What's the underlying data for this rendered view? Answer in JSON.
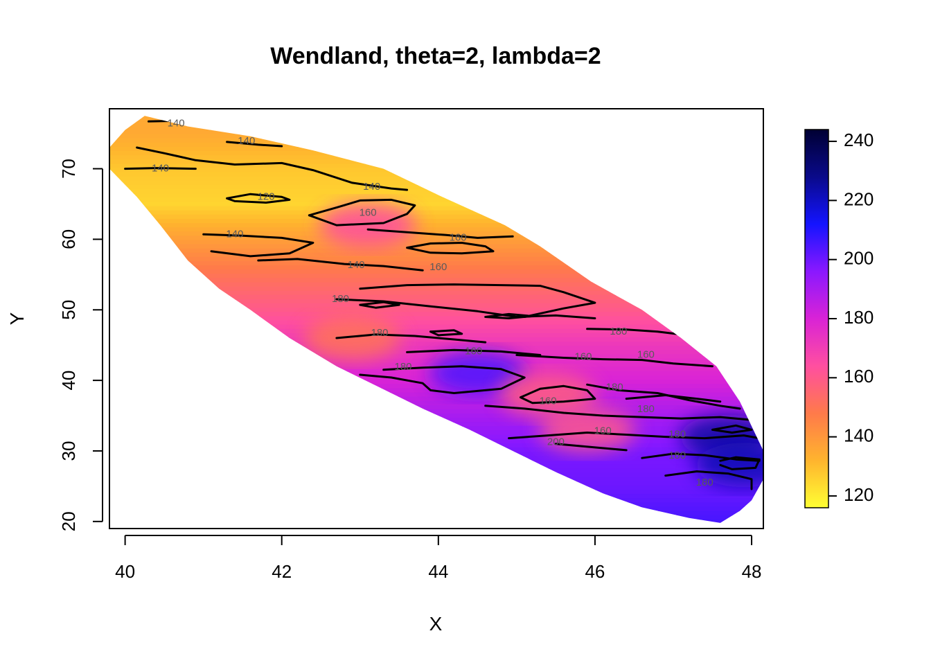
{
  "chart_data": {
    "type": "heatmap",
    "title": "Wendland, theta=2, lambda=2",
    "xlabel": "X",
    "ylabel": "Y",
    "xlim": [
      39.8,
      48.15
    ],
    "ylim": [
      19,
      78.5
    ],
    "x_ticks": [
      40,
      42,
      44,
      46,
      48
    ],
    "y_ticks": [
      20,
      30,
      40,
      50,
      60,
      70
    ],
    "x_tick_labels": [
      "40",
      "42",
      "44",
      "46",
      "48"
    ],
    "y_tick_labels": [
      "20",
      "30",
      "40",
      "50",
      "60",
      "70"
    ],
    "colorbar": {
      "range": [
        116,
        244
      ],
      "ticks": [
        120,
        140,
        160,
        180,
        200,
        220,
        240
      ],
      "tick_labels": [
        "120",
        "140",
        "160",
        "180",
        "200",
        "220",
        "240"
      ],
      "colors": [
        "#FFFF33",
        "#FFB42E",
        "#FF7A4A",
        "#FF4FA0",
        "#D923D6",
        "#8A18FF",
        "#1414FF",
        "#0A0A8A",
        "#000033"
      ]
    },
    "region_outline": [
      [
        40.25,
        77.5
      ],
      [
        40.8,
        76
      ],
      [
        41.6,
        74.6
      ],
      [
        42.4,
        72.6
      ],
      [
        43.3,
        70
      ],
      [
        44.05,
        66
      ],
      [
        44.85,
        62
      ],
      [
        45.3,
        59
      ],
      [
        45.95,
        54
      ],
      [
        46.6,
        50
      ],
      [
        47.1,
        46
      ],
      [
        47.55,
        42
      ],
      [
        47.85,
        37
      ],
      [
        48.15,
        30
      ],
      [
        48.15,
        26
      ],
      [
        48.0,
        23
      ],
      [
        47.85,
        21.5
      ],
      [
        47.6,
        19.8
      ],
      [
        47.2,
        20.5
      ],
      [
        46.6,
        22
      ],
      [
        46.1,
        24
      ],
      [
        45.5,
        27
      ],
      [
        44.95,
        30
      ],
      [
        44.4,
        33
      ],
      [
        43.8,
        36
      ],
      [
        43.25,
        39
      ],
      [
        42.7,
        42
      ],
      [
        42.1,
        46
      ],
      [
        41.6,
        50
      ],
      [
        41.2,
        53
      ],
      [
        40.8,
        57
      ],
      [
        40.45,
        62
      ],
      [
        40.15,
        66
      ],
      [
        39.8,
        70
      ],
      [
        39.8,
        73
      ],
      [
        40.0,
        75.5
      ]
    ],
    "field_profile": [
      {
        "y": 75,
        "value": 135
      },
      {
        "y": 70,
        "value": 128
      },
      {
        "y": 65,
        "value": 125
      },
      {
        "y": 60,
        "value": 138
      },
      {
        "y": 55,
        "value": 150
      },
      {
        "y": 50,
        "value": 160
      },
      {
        "y": 45,
        "value": 172
      },
      {
        "y": 40,
        "value": 180
      },
      {
        "y": 35,
        "value": 190
      },
      {
        "y": 30,
        "value": 198
      },
      {
        "y": 25,
        "value": 200
      },
      {
        "y": 20,
        "value": 205
      }
    ],
    "field_hotspots": [
      {
        "x": 44.5,
        "y": 41,
        "value": 205
      },
      {
        "x": 47.7,
        "y": 32,
        "value": 225
      },
      {
        "x": 47.9,
        "y": 28,
        "value": 222
      },
      {
        "x": 43.1,
        "y": 62,
        "value": 165
      },
      {
        "x": 42.9,
        "y": 46,
        "value": 150
      },
      {
        "x": 45.4,
        "y": 38,
        "value": 158
      },
      {
        "x": 45.9,
        "y": 33,
        "value": 160
      }
    ],
    "contours": [
      {
        "level": 140,
        "points": [
          [
            40.15,
            73
          ],
          [
            40.5,
            72.2
          ],
          [
            40.9,
            71.2
          ],
          [
            41.4,
            70.6
          ],
          [
            42.0,
            70.8
          ],
          [
            42.4,
            69.8
          ],
          [
            42.9,
            68.0
          ],
          [
            43.4,
            67.2
          ],
          [
            43.6,
            67.0
          ]
        ]
      },
      {
        "level": 140,
        "points": [
          [
            40.0,
            70
          ],
          [
            40.4,
            70.1
          ],
          [
            40.9,
            70.0
          ]
        ]
      },
      {
        "level": 140,
        "points": [
          [
            40.3,
            76.7
          ],
          [
            40.7,
            76.8
          ],
          [
            41.0,
            76.7
          ]
        ]
      },
      {
        "level": 140,
        "points": [
          [
            41.3,
            73.8
          ],
          [
            41.7,
            73.4
          ],
          [
            42.0,
            73.2
          ]
        ]
      },
      {
        "level": 120,
        "points": [
          [
            41.3,
            65.8
          ],
          [
            41.6,
            66.4
          ],
          [
            42.0,
            66.0
          ],
          [
            42.1,
            65.6
          ],
          [
            41.8,
            65.2
          ],
          [
            41.4,
            65.4
          ],
          [
            41.3,
            65.8
          ]
        ]
      },
      {
        "level": 140,
        "points": [
          [
            41.0,
            60.7
          ],
          [
            41.5,
            60.5
          ],
          [
            42.0,
            60.2
          ],
          [
            42.4,
            59.5
          ],
          [
            42.1,
            58.0
          ],
          [
            41.6,
            57.6
          ],
          [
            41.1,
            58.3
          ]
        ]
      },
      {
        "level": 140,
        "points": [
          [
            41.7,
            57.0
          ],
          [
            42.2,
            57.2
          ],
          [
            42.8,
            56.5
          ],
          [
            43.3,
            56.2
          ],
          [
            43.8,
            55.6
          ]
        ]
      },
      {
        "level": 160,
        "points": [
          [
            42.35,
            63.4
          ],
          [
            42.7,
            64.5
          ],
          [
            43.0,
            65.5
          ],
          [
            43.4,
            65.6
          ],
          [
            43.7,
            64.8
          ],
          [
            43.6,
            63.6
          ],
          [
            43.3,
            62.3
          ],
          [
            42.7,
            62.0
          ],
          [
            42.35,
            63.4
          ]
        ]
      },
      {
        "level": 160,
        "points": [
          [
            43.1,
            61.4
          ],
          [
            43.6,
            61.0
          ],
          [
            44.1,
            60.6
          ],
          [
            44.5,
            60.2
          ],
          [
            44.95,
            60.4
          ]
        ]
      },
      {
        "level": 160,
        "points": [
          [
            43.6,
            58.8
          ],
          [
            43.9,
            59.4
          ],
          [
            44.3,
            59.5
          ],
          [
            44.6,
            59.0
          ],
          [
            44.7,
            58.3
          ],
          [
            44.3,
            58.0
          ],
          [
            43.9,
            58.1
          ],
          [
            43.6,
            58.8
          ]
        ]
      },
      {
        "level": 160,
        "points": [
          [
            43.0,
            53.0
          ],
          [
            43.6,
            53.5
          ],
          [
            44.2,
            53.6
          ],
          [
            44.8,
            53.5
          ],
          [
            45.3,
            53.4
          ],
          [
            45.6,
            52.5
          ],
          [
            46.0,
            51.0
          ],
          [
            45.6,
            50.2
          ],
          [
            45.1,
            49.0
          ]
        ]
      },
      {
        "level": 160,
        "points": [
          [
            42.7,
            51.5
          ],
          [
            43.3,
            51.2
          ],
          [
            43.9,
            50.5
          ],
          [
            44.5,
            49.8
          ],
          [
            45.0,
            49.0
          ],
          [
            45.5,
            49.2
          ],
          [
            46.0,
            48.8
          ]
        ]
      },
      {
        "level": 160,
        "points": [
          [
            44.6,
            49.0
          ],
          [
            44.9,
            49.4
          ],
          [
            45.2,
            49.1
          ],
          [
            44.9,
            48.8
          ],
          [
            44.6,
            49.0
          ]
        ]
      },
      {
        "level": 180,
        "points": [
          [
            43.0,
            50.7
          ],
          [
            43.3,
            51.1
          ],
          [
            43.5,
            50.7
          ],
          [
            43.2,
            50.3
          ],
          [
            43.0,
            50.7
          ]
        ]
      },
      {
        "level": 180,
        "points": [
          [
            42.7,
            46.0
          ],
          [
            43.2,
            46.5
          ],
          [
            43.7,
            46.3
          ],
          [
            44.2,
            45.8
          ],
          [
            44.6,
            45.4
          ]
        ]
      },
      {
        "level": 180,
        "points": [
          [
            43.9,
            46.9
          ],
          [
            44.2,
            47.1
          ],
          [
            44.3,
            46.6
          ],
          [
            44.0,
            46.4
          ],
          [
            43.9,
            46.9
          ]
        ]
      },
      {
        "level": 160,
        "points": [
          [
            43.6,
            44.0
          ],
          [
            44.2,
            44.3
          ],
          [
            44.8,
            44.1
          ],
          [
            45.3,
            43.6
          ]
        ]
      },
      {
        "level": 180,
        "points": [
          [
            43.3,
            41.5
          ],
          [
            43.8,
            41.8
          ],
          [
            44.3,
            42.0
          ],
          [
            44.8,
            41.6
          ],
          [
            45.1,
            40.4
          ],
          [
            44.8,
            38.8
          ],
          [
            44.2,
            38.2
          ],
          [
            43.9,
            38.6
          ],
          [
            43.8,
            39.6
          ],
          [
            43.4,
            40.4
          ],
          [
            43.0,
            40.8
          ]
        ]
      },
      {
        "level": 160,
        "points": [
          [
            45.05,
            37.6
          ],
          [
            45.3,
            38.8
          ],
          [
            45.6,
            39.2
          ],
          [
            45.9,
            38.6
          ],
          [
            46.0,
            37.4
          ],
          [
            45.6,
            37.0
          ],
          [
            45.2,
            36.8
          ],
          [
            45.05,
            37.6
          ]
        ]
      },
      {
        "level": 160,
        "points": [
          [
            45.0,
            43.6
          ],
          [
            45.6,
            43.2
          ],
          [
            46.1,
            43.0
          ],
          [
            46.6,
            42.9
          ]
        ]
      },
      {
        "level": 180,
        "points": [
          [
            45.9,
            47.3
          ],
          [
            46.4,
            47.2
          ],
          [
            46.8,
            46.9
          ],
          [
            47.1,
            46.5
          ]
        ]
      },
      {
        "level": 160,
        "points": [
          [
            46.6,
            42.9
          ],
          [
            47.0,
            42.4
          ],
          [
            47.5,
            42.0
          ]
        ]
      },
      {
        "level": 180,
        "points": [
          [
            45.9,
            39.4
          ],
          [
            46.3,
            38.6
          ],
          [
            46.8,
            38.2
          ],
          [
            47.2,
            37.2
          ],
          [
            47.6,
            36.4
          ],
          [
            47.85,
            36.0
          ]
        ]
      },
      {
        "level": 180,
        "points": [
          [
            46.4,
            37.4
          ],
          [
            46.9,
            37.9
          ],
          [
            47.3,
            37.4
          ],
          [
            47.6,
            37.0
          ]
        ]
      },
      {
        "level": 200,
        "points": [
          [
            44.6,
            36.4
          ],
          [
            45.1,
            36.0
          ],
          [
            45.6,
            35.4
          ],
          [
            46.1,
            35.0
          ],
          [
            46.6,
            34.8
          ],
          [
            47.1,
            34.6
          ],
          [
            47.6,
            34.8
          ],
          [
            48.0,
            34.4
          ]
        ]
      },
      {
        "level": 200,
        "points": [
          [
            44.9,
            31.8
          ],
          [
            45.4,
            32.2
          ],
          [
            45.9,
            32.6
          ],
          [
            46.4,
            32.3
          ],
          [
            46.9,
            32.0
          ],
          [
            47.4,
            31.8
          ],
          [
            47.9,
            32.2
          ],
          [
            48.1,
            31.8
          ]
        ]
      },
      {
        "level": 200,
        "points": [
          [
            45.5,
            31.0
          ],
          [
            46.0,
            30.5
          ],
          [
            46.4,
            30.1
          ]
        ]
      },
      {
        "level": 180,
        "points": [
          [
            46.6,
            29.0
          ],
          [
            47.0,
            29.6
          ],
          [
            47.4,
            29.4
          ],
          [
            47.8,
            28.8
          ],
          [
            48.1,
            28.6
          ]
        ]
      },
      {
        "level": 180,
        "points": [
          [
            46.9,
            26.5
          ],
          [
            47.3,
            27.1
          ],
          [
            47.7,
            26.8
          ],
          [
            48.0,
            26.0
          ],
          [
            48.0,
            24.6
          ]
        ]
      },
      {
        "level": 200,
        "points": [
          [
            47.5,
            33.0
          ],
          [
            47.8,
            33.6
          ],
          [
            48.0,
            33.0
          ],
          [
            47.75,
            32.6
          ],
          [
            47.5,
            33.0
          ]
        ]
      },
      {
        "level": 220,
        "points": [
          [
            47.6,
            28.6
          ],
          [
            47.8,
            29.1
          ],
          [
            48.1,
            28.8
          ],
          [
            48.05,
            27.6
          ],
          [
            47.75,
            27.4
          ],
          [
            47.6,
            28.0
          ]
        ]
      }
    ],
    "contour_labels": [
      {
        "x": 40.65,
        "y": 76.4,
        "text": "140"
      },
      {
        "x": 41.55,
        "y": 73.9,
        "text": "140"
      },
      {
        "x": 40.45,
        "y": 70.0,
        "text": "140"
      },
      {
        "x": 43.15,
        "y": 67.4,
        "text": "140"
      },
      {
        "x": 41.8,
        "y": 66.0,
        "text": "120"
      },
      {
        "x": 43.1,
        "y": 63.7,
        "text": "160"
      },
      {
        "x": 41.4,
        "y": 60.7,
        "text": "140"
      },
      {
        "x": 44.25,
        "y": 60.2,
        "text": "160"
      },
      {
        "x": 42.95,
        "y": 56.3,
        "text": "140"
      },
      {
        "x": 44.0,
        "y": 56.0,
        "text": "160"
      },
      {
        "x": 42.75,
        "y": 51.5,
        "text": "180"
      },
      {
        "x": 43.25,
        "y": 46.7,
        "text": "180"
      },
      {
        "x": 44.45,
        "y": 44.1,
        "text": "160"
      },
      {
        "x": 43.55,
        "y": 41.9,
        "text": "180"
      },
      {
        "x": 45.85,
        "y": 43.3,
        "text": "160"
      },
      {
        "x": 46.3,
        "y": 46.9,
        "text": "180"
      },
      {
        "x": 46.65,
        "y": 43.6,
        "text": "160"
      },
      {
        "x": 46.25,
        "y": 39.0,
        "text": "180"
      },
      {
        "x": 45.4,
        "y": 37.0,
        "text": "160"
      },
      {
        "x": 46.65,
        "y": 35.9,
        "text": "180"
      },
      {
        "x": 46.1,
        "y": 32.8,
        "text": "160"
      },
      {
        "x": 45.5,
        "y": 31.2,
        "text": "200"
      },
      {
        "x": 47.05,
        "y": 32.3,
        "text": "180"
      },
      {
        "x": 47.05,
        "y": 29.3,
        "text": "180"
      },
      {
        "x": 47.4,
        "y": 25.5,
        "text": "180"
      }
    ]
  }
}
